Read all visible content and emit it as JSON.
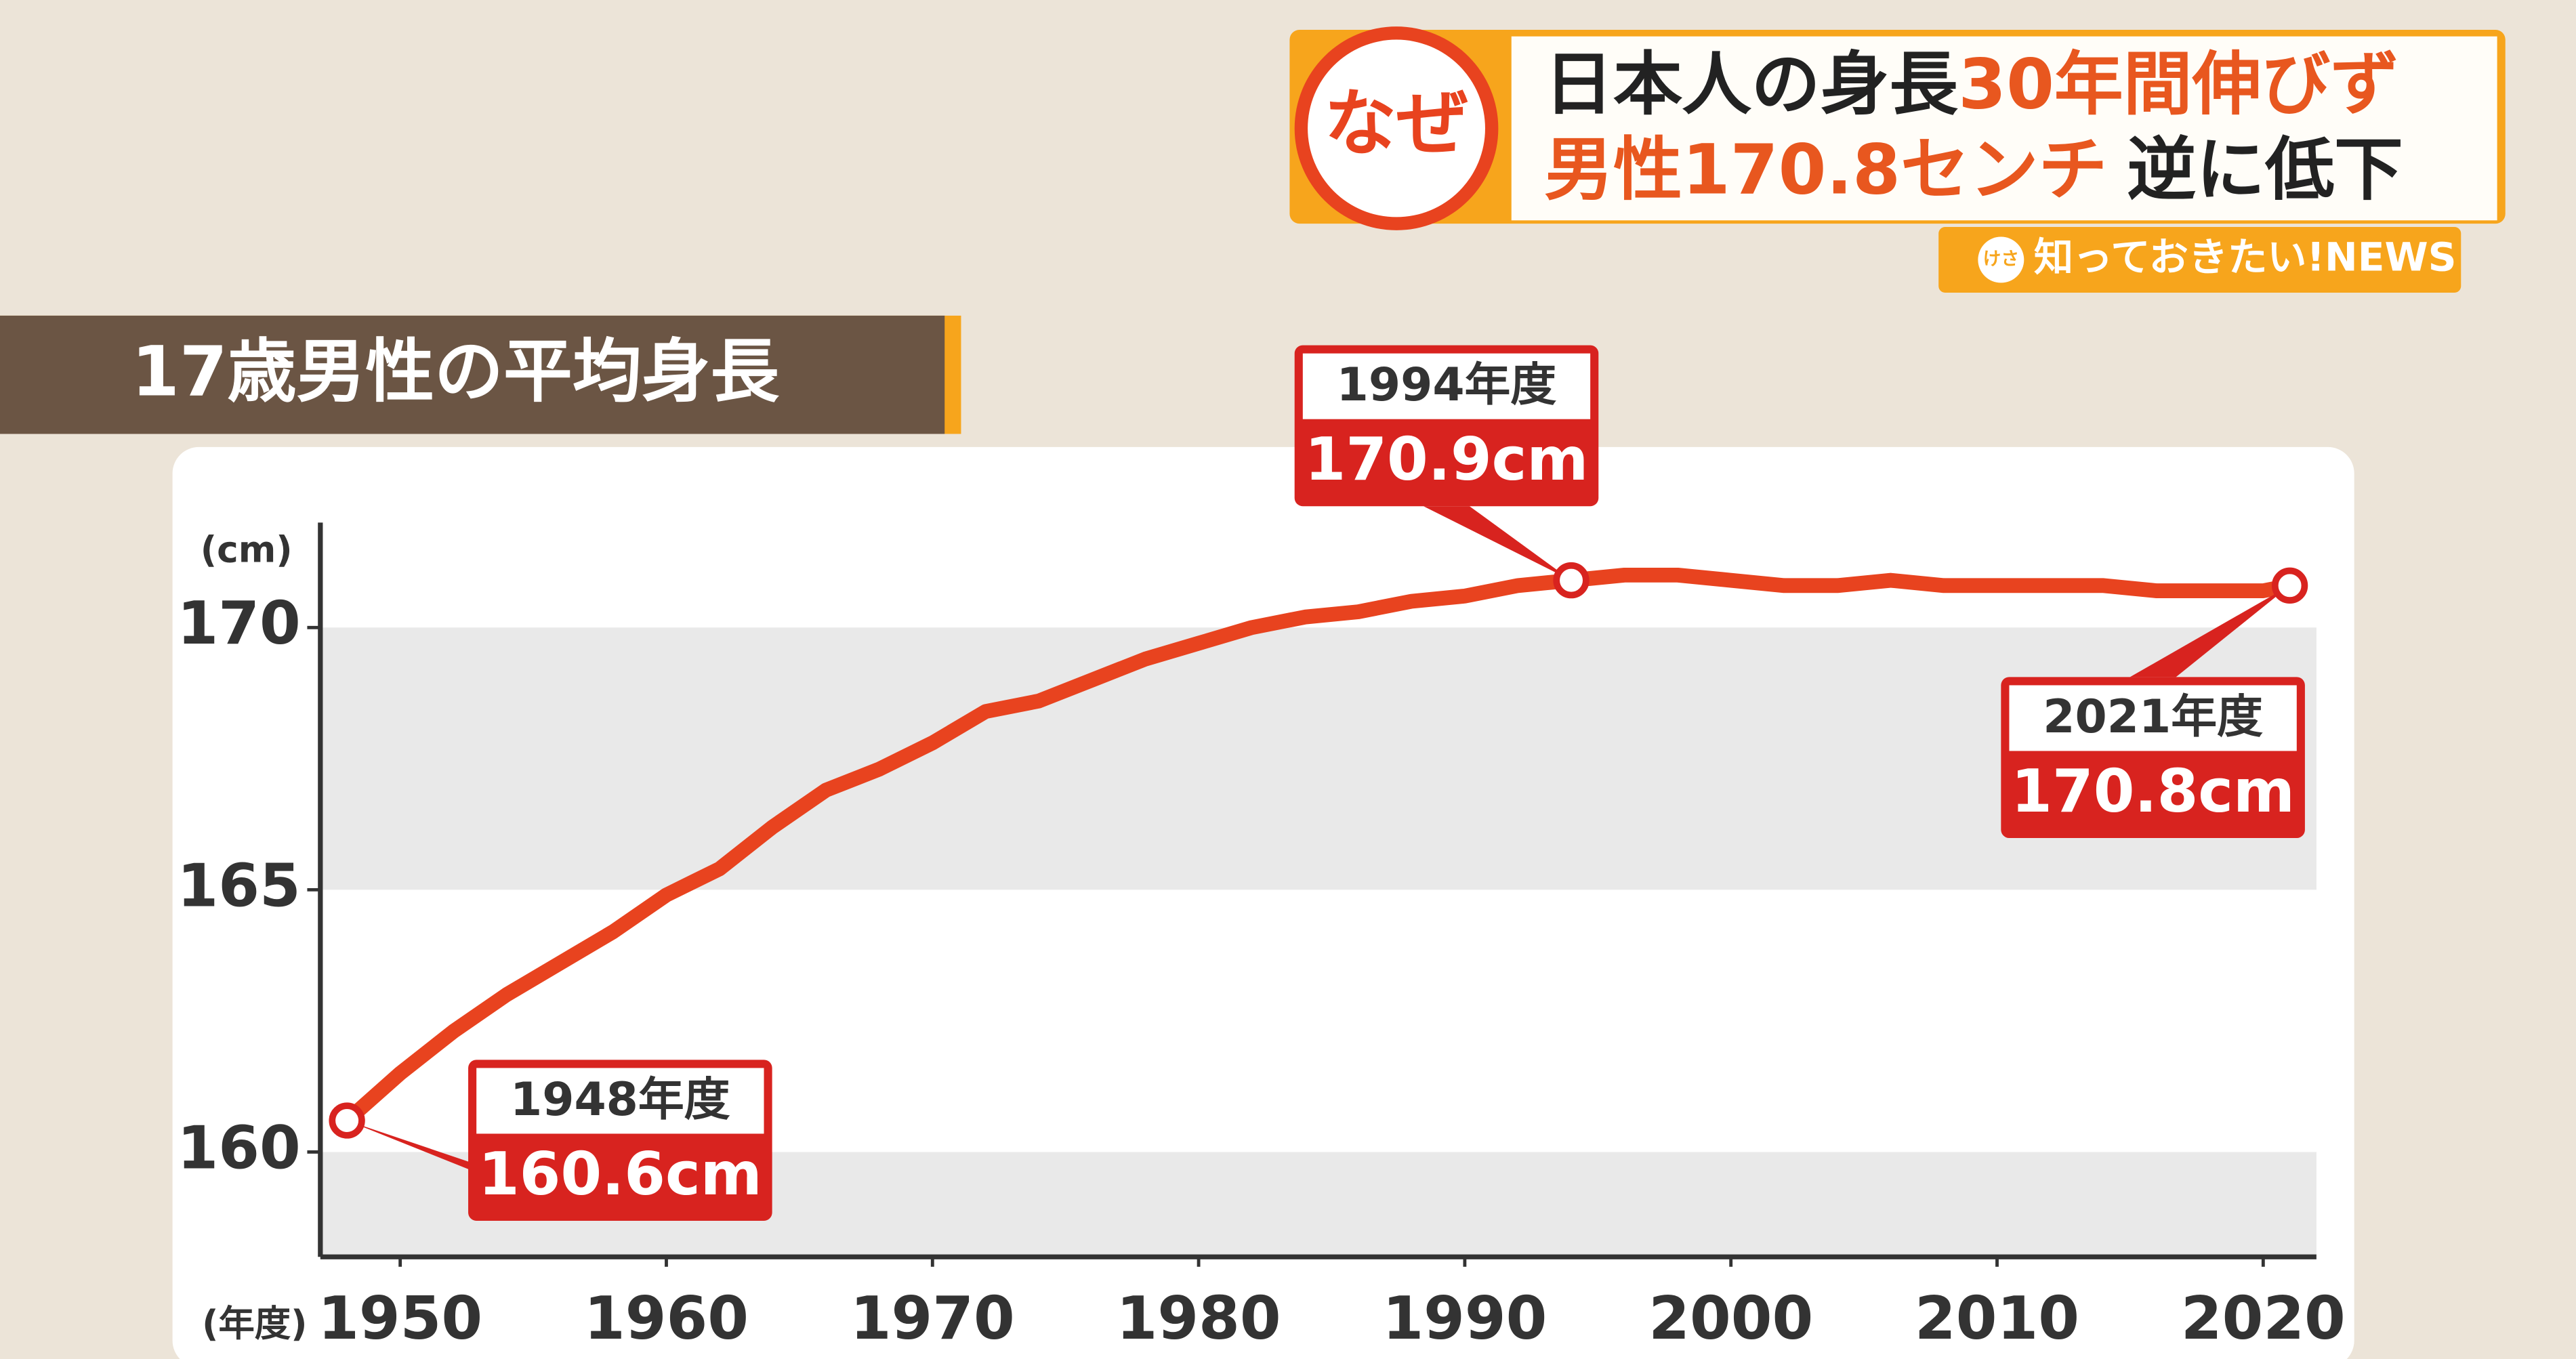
{
  "header": {
    "badge": "なぜ",
    "line1": [
      "日本人の身長",
      "30年間伸びず"
    ],
    "line2": [
      "男性170.8センチ",
      "逆に低下"
    ],
    "corner_badge": "けさ",
    "corner_label": "知っておきたい!NEWS"
  },
  "chart_data": {
    "type": "line",
    "title": "17歳男性の平均身長",
    "y_label": "(cm)",
    "x_label": "(年度)",
    "x": [
      1948,
      1950,
      1952,
      1954,
      1956,
      1958,
      1960,
      1962,
      1964,
      1966,
      1968,
      1970,
      1972,
      1974,
      1976,
      1978,
      1980,
      1982,
      1984,
      1986,
      1988,
      1990,
      1992,
      1994,
      1996,
      1998,
      2000,
      2002,
      2004,
      2006,
      2008,
      2010,
      2012,
      2014,
      2016,
      2018,
      2020,
      2021
    ],
    "series": [
      {
        "color": "#e8431f",
        "values": [
          160.6,
          161.5,
          162.3,
          163.0,
          163.6,
          164.2,
          164.9,
          165.4,
          166.2,
          166.9,
          167.3,
          167.8,
          168.4,
          168.6,
          169.0,
          169.4,
          169.7,
          170.0,
          170.2,
          170.3,
          170.5,
          170.6,
          170.8,
          170.9,
          171.0,
          171.0,
          170.9,
          170.8,
          170.8,
          170.9,
          170.8,
          170.8,
          170.8,
          170.8,
          170.7,
          170.7,
          170.7,
          170.8
        ]
      }
    ],
    "xlim": [
      1947,
      2022
    ],
    "ylim": [
      158,
      172
    ],
    "xticks": [
      1950,
      1960,
      1970,
      1980,
      1990,
      2000,
      2010,
      2020
    ],
    "yticks": [
      160,
      165,
      170
    ],
    "annotations": [
      {
        "label": "1948年度",
        "text": "160.6cm"
      },
      {
        "label": "1994年度",
        "text": "170.9cm"
      },
      {
        "label": "2021年度",
        "text": "170.8cm"
      }
    ]
  }
}
